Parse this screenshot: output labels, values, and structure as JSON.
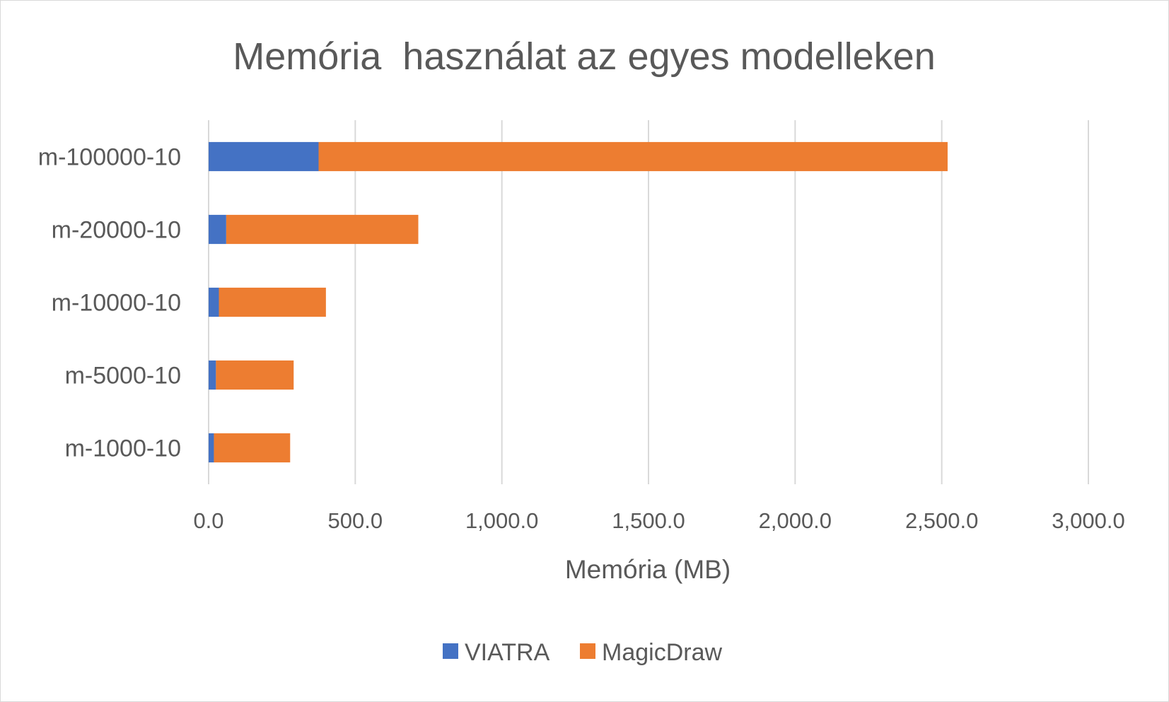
{
  "chart_data": {
    "type": "bar",
    "orientation": "horizontal",
    "stacked": true,
    "title": "Memória  használat az egyes modelleken",
    "xlabel": "Memória (MB)",
    "ylabel": "",
    "xlim": [
      0,
      3000
    ],
    "x_ticks": [
      "0.0",
      "500.0",
      "1,000.0",
      "1,500.0",
      "2,000.0",
      "2,500.0",
      "3,000.0"
    ],
    "x_tick_values": [
      0,
      500,
      1000,
      1500,
      2000,
      2500,
      3000
    ],
    "grid": true,
    "legend_position": "bottom",
    "categories": [
      "m-100000-10",
      "m-20000-10",
      "m-10000-10",
      "m-5000-10",
      "m-1000-10"
    ],
    "series": [
      {
        "name": "VIATRA",
        "color": "#4472C4",
        "values": [
          375,
          60,
          35,
          25,
          18
        ]
      },
      {
        "name": "MagicDraw",
        "color": "#ED7D31",
        "values": [
          2145,
          655,
          365,
          265,
          260
        ]
      }
    ]
  }
}
